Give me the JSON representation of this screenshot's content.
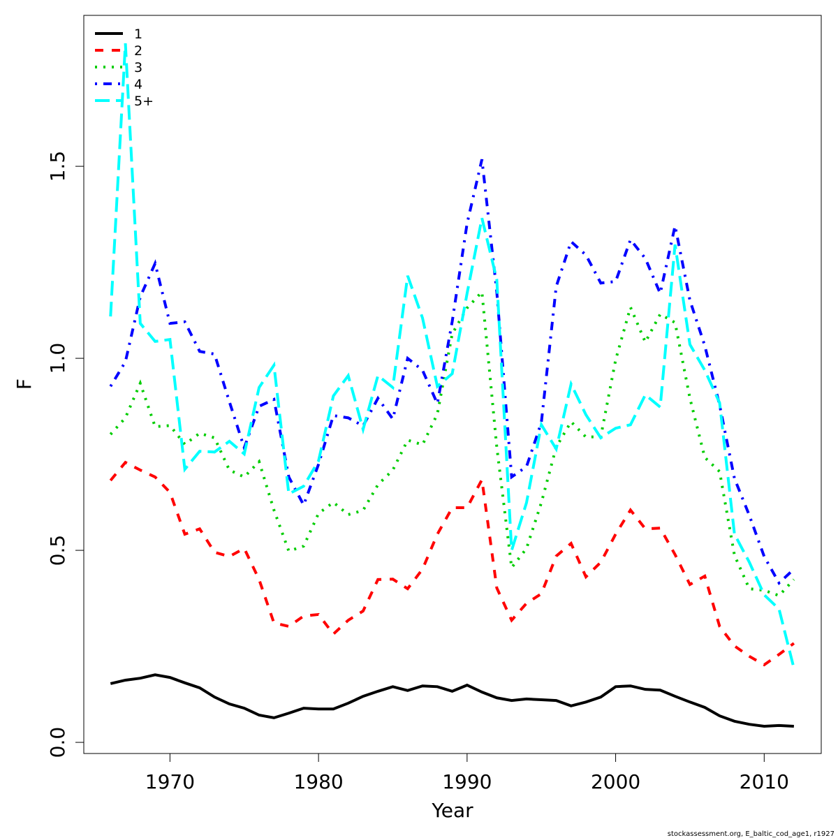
{
  "chart_data": {
    "type": "line",
    "xlabel": "Year",
    "ylabel": "F",
    "footnote": "stockassessment.org, E_baltic_cod_age1, r1927",
    "x": [
      1966,
      1967,
      1968,
      1969,
      1970,
      1971,
      1972,
      1973,
      1974,
      1975,
      1976,
      1977,
      1978,
      1979,
      1980,
      1981,
      1982,
      1983,
      1984,
      1985,
      1986,
      1987,
      1988,
      1989,
      1990,
      1991,
      1992,
      1993,
      1994,
      1995,
      1996,
      1997,
      1998,
      1999,
      2000,
      2001,
      2002,
      2003,
      2004,
      2005,
      2006,
      2007,
      2008,
      2009,
      2010,
      2011,
      2012
    ],
    "xlim": [
      1964.2,
      2013.84
    ],
    "ylim": [
      -0.029,
      1.893
    ],
    "xticks": [
      1970,
      1980,
      1990,
      2000,
      2010
    ],
    "yticks": [
      {
        "value": 0,
        "label": "0.0"
      },
      0.5,
      {
        "value": 1,
        "label": "1.0"
      },
      1.5
    ],
    "legend": "top-left",
    "series": [
      {
        "name": "1",
        "color": "#000000",
        "dash": "solid",
        "values": [
          0.153,
          0.162,
          0.167,
          0.176,
          0.169,
          0.155,
          0.142,
          0.118,
          0.1,
          0.089,
          0.071,
          0.064,
          0.076,
          0.089,
          0.087,
          0.087,
          0.102,
          0.12,
          0.133,
          0.145,
          0.135,
          0.147,
          0.145,
          0.133,
          0.149,
          0.131,
          0.116,
          0.109,
          0.113,
          0.111,
          0.109,
          0.095,
          0.105,
          0.118,
          0.145,
          0.147,
          0.138,
          0.136,
          0.12,
          0.105,
          0.091,
          0.069,
          0.055,
          0.047,
          0.042,
          0.044,
          0.042
        ]
      },
      {
        "name": "2",
        "color": "#ff0000",
        "dash": "dashed",
        "values": [
          0.682,
          0.729,
          0.709,
          0.691,
          0.651,
          0.542,
          0.556,
          0.495,
          0.484,
          0.505,
          0.424,
          0.311,
          0.302,
          0.329,
          0.333,
          0.282,
          0.318,
          0.342,
          0.424,
          0.425,
          0.4,
          0.451,
          0.542,
          0.611,
          0.611,
          0.684,
          0.402,
          0.318,
          0.362,
          0.387,
          0.485,
          0.518,
          0.431,
          0.469,
          0.542,
          0.605,
          0.556,
          0.558,
          0.489,
          0.411,
          0.433,
          0.302,
          0.251,
          0.224,
          0.202,
          0.229,
          0.258
        ]
      },
      {
        "name": "3",
        "color": "#00cd00",
        "dash": "dotted",
        "values": [
          0.802,
          0.845,
          0.935,
          0.822,
          0.825,
          0.776,
          0.805,
          0.793,
          0.709,
          0.691,
          0.731,
          0.605,
          0.498,
          0.511,
          0.596,
          0.625,
          0.593,
          0.604,
          0.671,
          0.709,
          0.787,
          0.775,
          0.855,
          1.064,
          1.131,
          1.173,
          0.769,
          0.455,
          0.505,
          0.624,
          0.769,
          0.835,
          0.795,
          0.796,
          0.996,
          1.133,
          1.042,
          1.115,
          1.093,
          0.896,
          0.742,
          0.705,
          0.487,
          0.4,
          0.396,
          0.382,
          0.424
        ]
      },
      {
        "name": "4",
        "color": "#0000ff",
        "dash": "dotdash",
        "values": [
          0.927,
          0.991,
          1.16,
          1.247,
          1.091,
          1.095,
          1.018,
          1.011,
          0.887,
          0.767,
          0.875,
          0.893,
          0.691,
          0.618,
          0.724,
          0.851,
          0.845,
          0.824,
          0.896,
          0.842,
          1.0,
          0.969,
          0.882,
          1.096,
          1.351,
          1.518,
          1.173,
          0.691,
          0.718,
          0.833,
          1.187,
          1.304,
          1.269,
          1.196,
          1.2,
          1.309,
          1.26,
          1.169,
          1.345,
          1.151,
          1.033,
          0.878,
          0.687,
          0.591,
          0.484,
          0.415,
          0.451
        ]
      },
      {
        "name": "5+",
        "color": "#00ffff",
        "dash": "longdash",
        "values": [
          1.109,
          1.82,
          1.091,
          1.044,
          1.049,
          0.711,
          0.758,
          0.756,
          0.784,
          0.751,
          0.924,
          0.982,
          0.647,
          0.667,
          0.733,
          0.902,
          0.955,
          0.815,
          0.955,
          0.924,
          1.215,
          1.105,
          0.927,
          0.96,
          1.169,
          1.365,
          1.205,
          0.5,
          0.624,
          0.827,
          0.764,
          0.933,
          0.853,
          0.793,
          0.818,
          0.827,
          0.905,
          0.873,
          1.296,
          1.036,
          0.969,
          0.884,
          0.542,
          0.469,
          0.384,
          0.347,
          0.193
        ]
      }
    ]
  }
}
